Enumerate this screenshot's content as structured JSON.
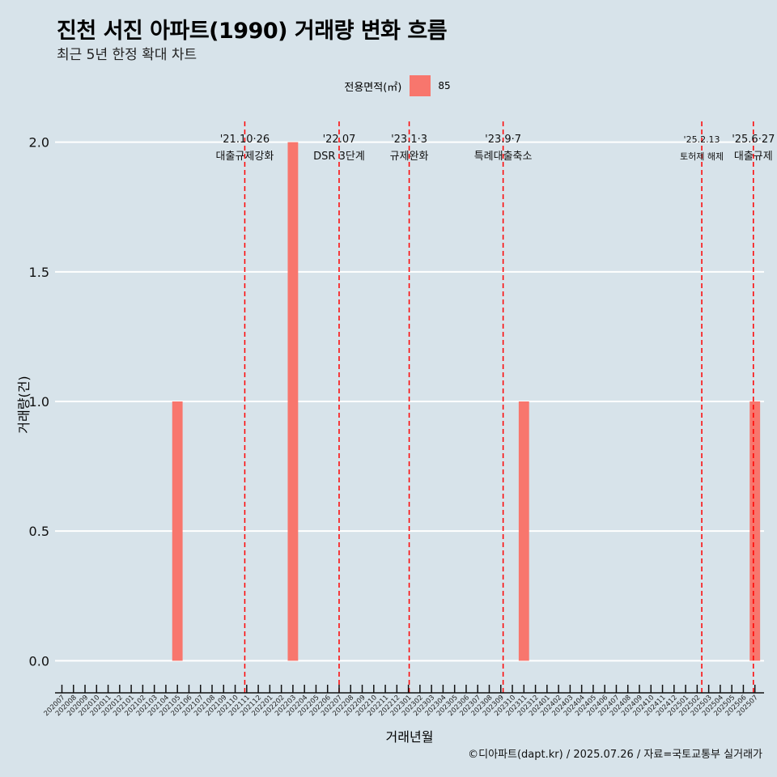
{
  "header": {
    "title": "진천 서진 아파트(1990) 거래량 변화 흐름",
    "subtitle": "최근 5년 한정 확대 차트"
  },
  "legend": {
    "title": "전용면적(㎡)",
    "items": [
      {
        "label": "85",
        "color": "#f8766d"
      }
    ]
  },
  "axes": {
    "xlabel": "거래년월",
    "ylabel": "거래량(건)"
  },
  "caption": "©디아파트(dapt.kr) / 2025.07.26 / 자료=국토교통부 실거래가",
  "colors": {
    "background": "#d7e3ea",
    "bar": "#f8766d",
    "event_line": "#ff0000",
    "grid": "#ffffff"
  },
  "chart_data": {
    "type": "bar",
    "categories": [
      "202007",
      "202008",
      "202009",
      "202010",
      "202011",
      "202012",
      "202101",
      "202102",
      "202103",
      "202104",
      "202105",
      "202106",
      "202107",
      "202108",
      "202109",
      "202110",
      "202111",
      "202112",
      "202201",
      "202202",
      "202203",
      "202204",
      "202205",
      "202206",
      "202207",
      "202208",
      "202209",
      "202210",
      "202211",
      "202212",
      "202301",
      "202302",
      "202303",
      "202304",
      "202305",
      "202306",
      "202307",
      "202308",
      "202309",
      "202310",
      "202311",
      "202312",
      "202401",
      "202402",
      "202403",
      "202404",
      "202405",
      "202406",
      "202407",
      "202408",
      "202409",
      "202410",
      "202411",
      "202412",
      "202501",
      "202502",
      "202503",
      "202504",
      "202505",
      "202506",
      "202507"
    ],
    "series": [
      {
        "name": "85",
        "values": [
          0,
          0,
          0,
          0,
          0,
          0,
          0,
          0,
          0,
          0,
          1,
          0,
          0,
          0,
          0,
          0,
          0,
          0,
          0,
          0,
          2,
          0,
          0,
          0,
          0,
          0,
          0,
          0,
          0,
          0,
          0,
          0,
          0,
          0,
          0,
          0,
          0,
          0,
          0,
          0,
          1,
          0,
          0,
          0,
          0,
          0,
          0,
          0,
          0,
          0,
          0,
          0,
          0,
          0,
          0,
          0,
          0,
          0,
          0,
          0,
          1
        ]
      }
    ],
    "ylim": [
      -0.08,
      2.08
    ],
    "yticks": [
      0.0,
      0.5,
      1.0,
      1.5,
      2.0
    ],
    "ytick_labels": [
      "0.0",
      "0.5",
      "1.0",
      "1.5",
      "2.0"
    ],
    "grid": true,
    "legend_position": "top",
    "events": [
      {
        "date": "2021-10-26",
        "label1": "'21.10·26",
        "label2": "대출규제강화"
      },
      {
        "date": "2022-07",
        "label1": "'22.07",
        "label2": "DSR 3단계"
      },
      {
        "date": "2023-01-03",
        "label1": "'23.1·3",
        "label2": "규제완화"
      },
      {
        "date": "2023-09-07",
        "label1": "'23.9·7",
        "label2": "특례대출축소"
      },
      {
        "date": "2025-02-13",
        "label1": "'25.2.13",
        "label2": "토허제 해제"
      },
      {
        "date": "2025-06-27",
        "label1": "'25.6·27",
        "label2": "대출규제"
      }
    ]
  }
}
